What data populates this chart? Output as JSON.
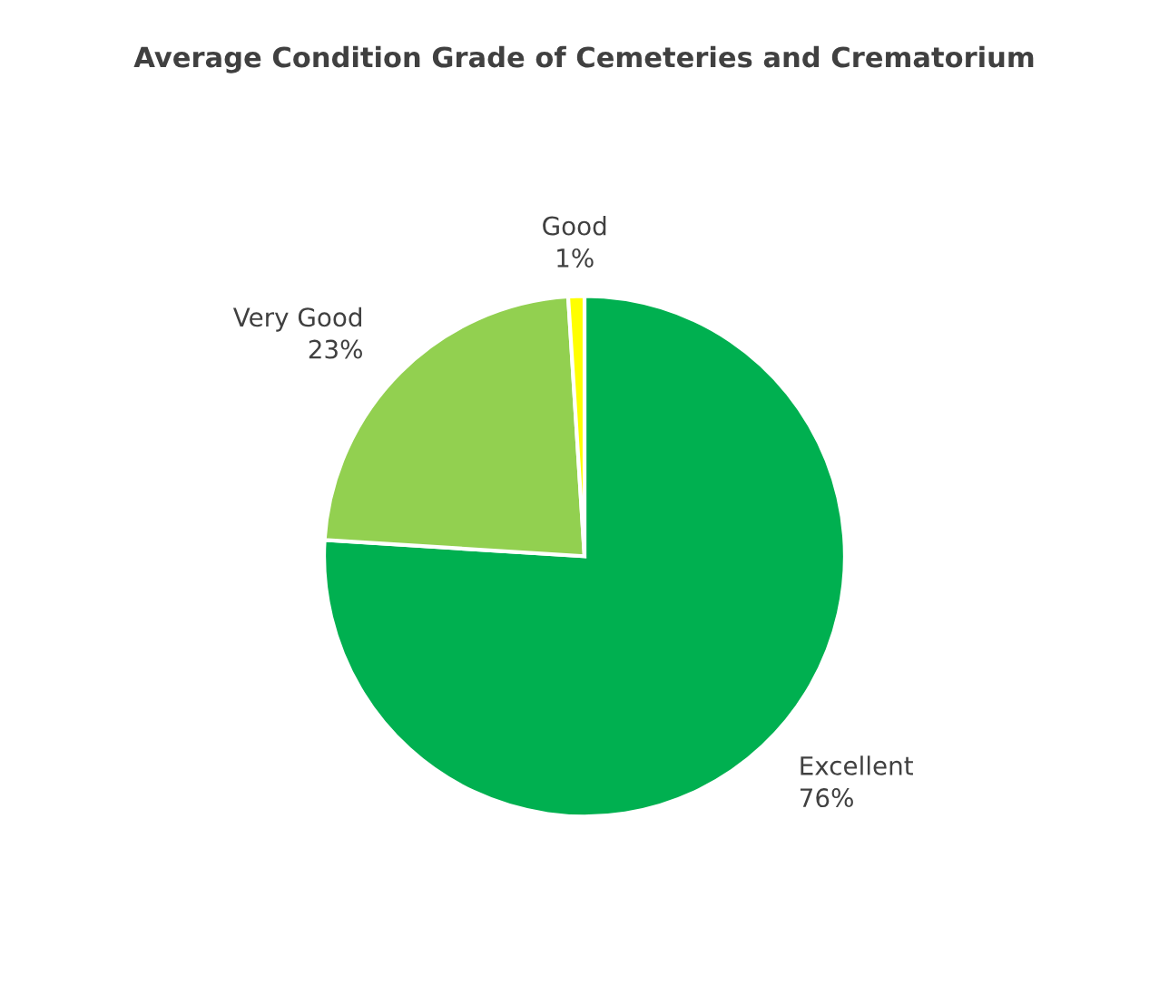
{
  "chart_data": {
    "type": "pie",
    "title": "Average Condition Grade of Cemeteries and Crematorium",
    "categories": [
      "Excellent",
      "Very Good",
      "Good"
    ],
    "values": [
      76,
      23,
      1
    ],
    "value_labels": [
      "76%",
      "23%",
      "1%"
    ],
    "colors": [
      "#00b050",
      "#92d050",
      "#ffff00"
    ],
    "legend": false
  }
}
